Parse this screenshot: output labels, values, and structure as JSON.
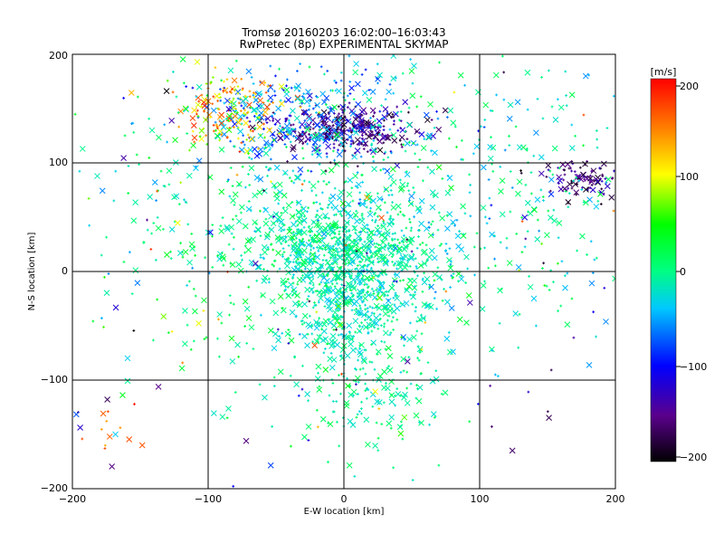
{
  "chart_data": {
    "type": "scatter",
    "title": "Tromsø 20160203 16:02:00–16:03:43",
    "subtitle": "RwPretec (8p) EXPERIMENTAL SKYMAP",
    "xlabel": "E-W location [km]",
    "ylabel": "N-S location [km]",
    "xlim": [
      -200,
      200
    ],
    "ylim": [
      -200,
      200
    ],
    "xticks": [
      -200,
      -100,
      0,
      100,
      200
    ],
    "yticks": [
      -200,
      -100,
      0,
      100,
      200
    ],
    "xtick_labels": [
      "−200",
      "−100",
      "0",
      "100",
      "200"
    ],
    "ytick_labels": [
      "−200",
      "−100",
      "0",
      "100",
      "200"
    ],
    "grid": true,
    "colorbar": {
      "label": "[m/s]",
      "range": [
        -200,
        200
      ],
      "ticks": [
        200,
        100,
        0,
        -100,
        -200
      ],
      "tick_labels": [
        "200",
        "100",
        "0",
        "−100",
        "−200"
      ],
      "colormap": "rainbow (black-purple-blue-cyan-green-yellow-red)"
    },
    "markers": [
      "x (large)",
      "+ (small)"
    ],
    "clusters": [
      {
        "cx": 0,
        "cy": 20,
        "sx": 35,
        "sy": 25,
        "n": 700,
        "vmin": -40,
        "vmax": 20
      },
      {
        "cx": 5,
        "cy": -30,
        "sx": 25,
        "sy": 30,
        "n": 350,
        "vmin": -40,
        "vmax": 10
      },
      {
        "cx": 0,
        "cy": 130,
        "sx": 25,
        "sy": 12,
        "n": 320,
        "vmin": -190,
        "vmax": -110
      },
      {
        "cx": -35,
        "cy": 140,
        "sx": 35,
        "sy": 25,
        "n": 250,
        "vmin": -100,
        "vmax": -20
      },
      {
        "cx": -80,
        "cy": 150,
        "sx": 20,
        "sy": 20,
        "n": 160,
        "vmin": 50,
        "vmax": 190
      },
      {
        "cx": 180,
        "cy": 85,
        "sx": 18,
        "sy": 10,
        "n": 110,
        "vmin": -200,
        "vmax": -120
      },
      {
        "cx": 20,
        "cy": 100,
        "sx": 100,
        "sy": 70,
        "n": 500,
        "vmin": -60,
        "vmax": 30
      },
      {
        "cx": -60,
        "cy": 0,
        "sx": 60,
        "sy": 60,
        "n": 250,
        "vmin": -20,
        "vmax": 40
      },
      {
        "cx": 20,
        "cy": -110,
        "sx": 30,
        "sy": 30,
        "n": 150,
        "vmin": -30,
        "vmax": 20
      },
      {
        "cx": 120,
        "cy": 30,
        "sx": 50,
        "sy": 50,
        "n": 120,
        "vmin": -60,
        "vmax": 20
      },
      {
        "cx": -170,
        "cy": -140,
        "sx": 15,
        "sy": 15,
        "n": 12,
        "vmin": 120,
        "vmax": 200
      },
      {
        "cx": 0,
        "cy": 0,
        "sx": 150,
        "sy": 120,
        "n": 250,
        "vmin": -200,
        "vmax": 180
      }
    ]
  }
}
